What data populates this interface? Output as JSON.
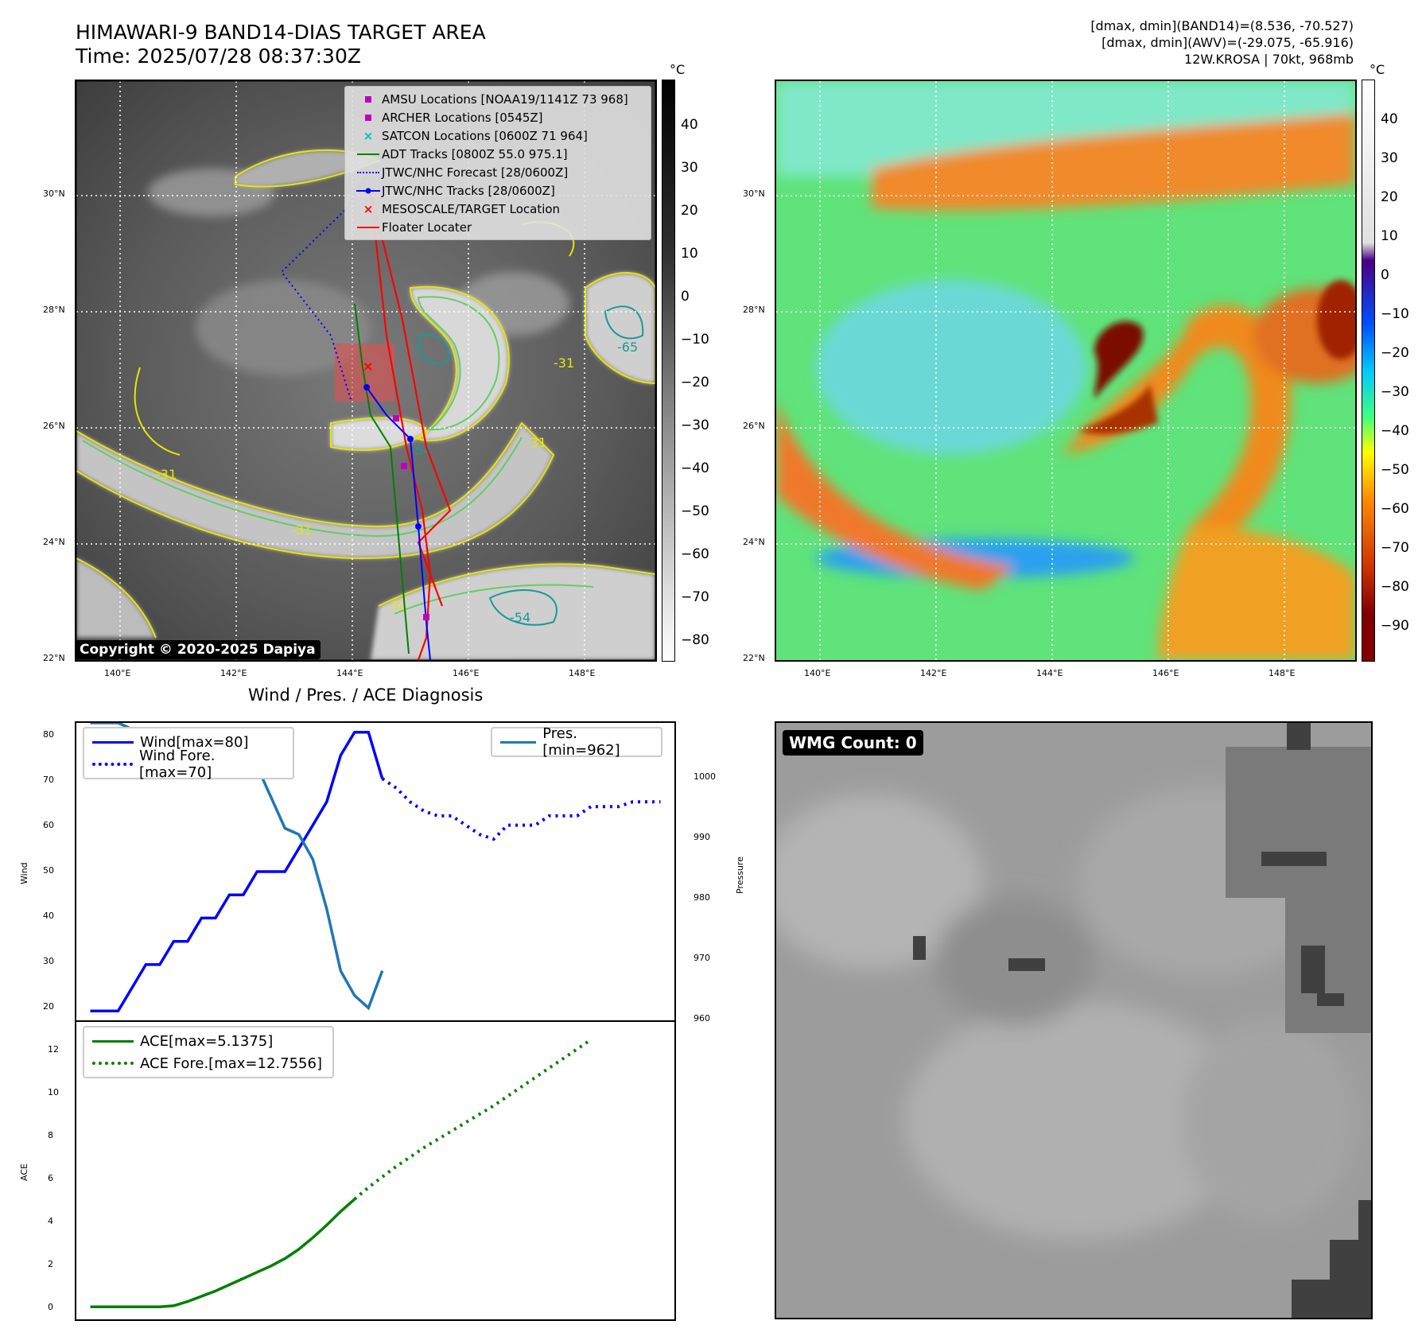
{
  "header": {
    "title_line1": "HIMAWARI-9 BAND14-DIAS TARGET AREA",
    "title_line2": "Time: 2025/07/28 08:37:30Z",
    "info_line1": "[dmax, dmin](BAND14)=(8.536, -70.527)",
    "info_line2": "[dmax, dmin](AWV)=(-29.075, -65.916)",
    "info_line3": "12W.KROSA | 70kt, 968mb"
  },
  "map_axes": {
    "lat_labels": [
      "30°N",
      "28°N",
      "26°N",
      "24°N",
      "22°N"
    ],
    "lon_labels": [
      "140°E",
      "142°E",
      "144°E",
      "146°E",
      "148°E"
    ]
  },
  "colorbar_left": {
    "unit": "°C",
    "ticks": [
      "40",
      "30",
      "20",
      "10",
      "0",
      "−10",
      "−20",
      "−30",
      "−40",
      "−50",
      "−60",
      "−70",
      "−80"
    ]
  },
  "colorbar_right": {
    "unit": "°C",
    "ticks": [
      "40",
      "30",
      "20",
      "10",
      "0",
      "−10",
      "−20",
      "−30",
      "−40",
      "−50",
      "−60",
      "−70",
      "−80",
      "−90"
    ]
  },
  "map_legend": [
    {
      "label": "AMSU Locations [NOAA19/1141Z 73 968]",
      "symbol": "square",
      "color": "#bf00bf"
    },
    {
      "label": "ARCHER Locations [0545Z]",
      "symbol": "square",
      "color": "#bf00bf"
    },
    {
      "label": "SATCON Locations [0600Z 71 964]",
      "symbol": "x",
      "color": "#00bfbf"
    },
    {
      "label": "ADT Tracks [0800Z 55.0 975.1]",
      "symbol": "line",
      "color": "#008000"
    },
    {
      "label": "JTWC/NHC Forecast [28/0600Z]",
      "symbol": "dotted",
      "color": "#0000ff"
    },
    {
      "label": "JTWC/NHC Tracks [28/0600Z]",
      "symbol": "line-dot",
      "color": "#0000ff"
    },
    {
      "label": "MESOSCALE/TARGET Location",
      "symbol": "x",
      "color": "#ff0000"
    },
    {
      "label": "Floater Locater",
      "symbol": "line",
      "color": "#ff0000"
    }
  ],
  "contour_labels": [
    "-31",
    "-31",
    "-31",
    "-31",
    "-54",
    "-54",
    "-31",
    "-65"
  ],
  "copyright": "Copyright © 2020-2025 Dapiya",
  "wmg_badge": "WMG Count: 0",
  "diagnosis": {
    "title": "Wind / Pres. / ACE Diagnosis",
    "wind_ylabel": "Wind",
    "pressure_ylabel": "Pressure",
    "ace_ylabel": "ACE",
    "wind_legend": "Wind[max=80]",
    "wind_fore_legend": "Wind Fore.[max=70]",
    "pres_legend": "Pres.[min=962]",
    "ace_legend": "ACE[max=5.1375]",
    "ace_fore_legend": "ACE Fore.[max=12.7556]",
    "wind_ticks": [
      "80",
      "70",
      "60",
      "50",
      "40",
      "30",
      "20"
    ],
    "pres_ticks": [
      "1000",
      "990",
      "980",
      "970",
      "960"
    ],
    "ace_ticks": [
      "12",
      "10",
      "8",
      "6",
      "4",
      "2",
      "0"
    ]
  },
  "chart_data": {
    "type": "line",
    "title": "Wind / Pres. / ACE Diagnosis",
    "x": [
      0,
      1,
      2,
      3,
      4,
      5,
      6,
      7,
      8,
      9,
      10,
      11,
      12,
      13,
      14,
      15,
      16,
      17,
      18,
      19,
      20,
      21,
      22,
      23,
      24,
      25,
      26,
      27,
      28,
      29,
      30,
      31,
      32,
      33,
      34,
      35,
      36,
      37,
      38,
      39,
      40,
      41
    ],
    "wind": {
      "name": "Wind[max=80]",
      "color": "#0000ff",
      "ylim": [
        18,
        82
      ],
      "values": [
        20,
        20,
        20,
        25,
        30,
        30,
        35,
        35,
        40,
        40,
        45,
        45,
        50,
        50,
        50,
        55,
        60,
        65,
        75,
        80,
        80,
        70
      ]
    },
    "wind_forecast": {
      "name": "Wind Fore.[max=70]",
      "color": "#0000ff",
      "style": "dotted",
      "x_start": 21,
      "values": [
        70,
        68,
        65,
        63,
        62,
        62,
        60,
        58,
        57,
        60,
        60,
        60,
        62,
        62,
        62,
        64,
        64,
        64,
        65,
        65,
        65
      ]
    },
    "pressure": {
      "name": "Pres.[min=962]",
      "color": "#1f77b4",
      "ylim": [
        960,
        1008
      ],
      "values": [
        1008,
        1008,
        1008,
        1007,
        1006,
        1006,
        1005,
        1005,
        1003,
        1003,
        1001,
        1001,
        1001,
        996,
        991,
        990,
        986,
        978,
        968,
        964,
        962,
        968
      ]
    },
    "ace": {
      "name": "ACE[max=5.1375]",
      "color": "#008000",
      "ylim": [
        -0.6,
        13.6
      ],
      "values": [
        0,
        0,
        0,
        0,
        0,
        0,
        0.05,
        0.25,
        0.5,
        0.75,
        1.05,
        1.35,
        1.65,
        1.95,
        2.3,
        2.75,
        3.3,
        3.9,
        4.55,
        5.1375
      ]
    },
    "ace_forecast": {
      "name": "ACE Fore.[max=12.7556]",
      "color": "#008000",
      "style": "dotted",
      "x_start": 19,
      "values": [
        5.1375,
        5.7,
        6.2,
        6.7,
        7.15,
        7.6,
        8.0,
        8.4,
        8.8,
        9.2,
        9.6,
        10.05,
        10.5,
        10.95,
        11.4,
        11.85,
        12.3,
        12.7556
      ]
    }
  }
}
